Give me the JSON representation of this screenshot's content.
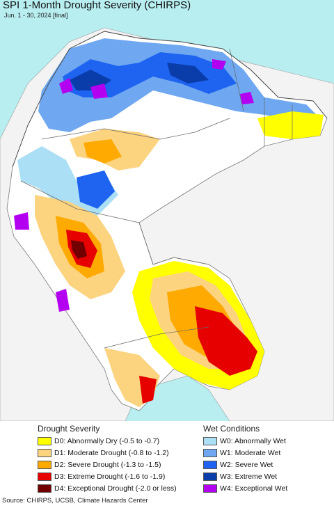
{
  "title": "SPI 1-Month Drought Severity (CHIRPS)",
  "subtitle": "Jun. 1 - 30, 2024 [final]",
  "legend": {
    "drought_heading": "Drought Severity",
    "wet_heading": "Wet Conditions",
    "drought": [
      {
        "label": "D0: Abnormally Dry (-0.5 to -0.7)",
        "color": "#ffff00"
      },
      {
        "label": "D1: Moderate Drought (-0.8 to -1.2)",
        "color": "#fcd37f"
      },
      {
        "label": "D2: Severe Drought (-1.3 to -1.5)",
        "color": "#ffaa00"
      },
      {
        "label": "D3: Extreme Drought (-1.6 to -1.9)",
        "color": "#e60000"
      },
      {
        "label": "D4: Exceptional Drought (-2.0 or less)",
        "color": "#730000"
      }
    ],
    "wet": [
      {
        "label": "W0: Abnormally Wet",
        "color": "#aadff5"
      },
      {
        "label": "W1: Moderate Wet",
        "color": "#6fa8f0"
      },
      {
        "label": "W2: Severe Wet",
        "color": "#1e64f0"
      },
      {
        "label": "W3: Extreme Wet",
        "color": "#0a3caa"
      },
      {
        "label": "W4: Exceptional Wet",
        "color": "#b400f0"
      }
    ]
  },
  "source": "Source: CHIRPS, UCSB, Climate Hazards Center"
}
